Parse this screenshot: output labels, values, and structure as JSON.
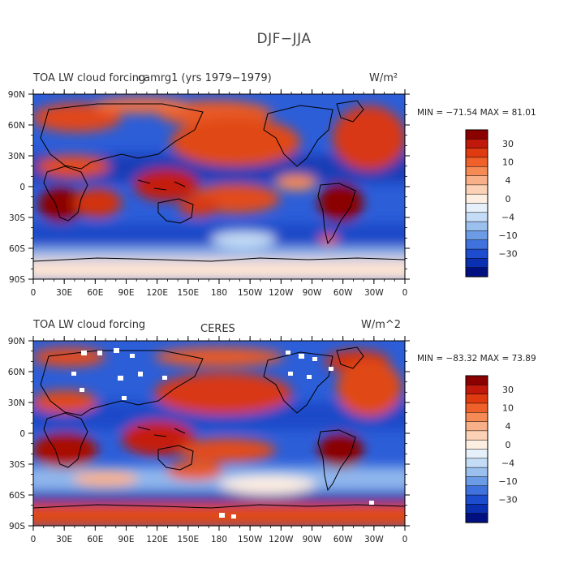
{
  "figure_title": "DJF−JJA",
  "panels": [
    {
      "left_title": "TOA LW cloud forcing",
      "center_title": "camrg1 (yrs 1979−1979)",
      "units": "W/m²",
      "min_max": "MIN = −71.54  MAX =  81.01"
    },
    {
      "left_title": "TOA LW cloud forcing",
      "center_title": "CERES",
      "units": "W/m^2",
      "min_max": "MIN = −83.32  MAX =  73.89"
    }
  ],
  "lon_labels": [
    "0",
    "30E",
    "60E",
    "90E",
    "120E",
    "150E",
    "180",
    "150W",
    "120W",
    "90W",
    "60W",
    "30W",
    "0"
  ],
  "lat_labels": [
    "90N",
    "60N",
    "30N",
    "0",
    "30S",
    "60S",
    "90S"
  ],
  "colorbar": {
    "tick_labels": [
      "30",
      "10",
      "4",
      "0",
      "−4",
      "−10",
      "−30"
    ],
    "colors": [
      "#8b0000",
      "#c0180a",
      "#e03a10",
      "#f0602a",
      "#f58a55",
      "#f8b088",
      "#fbd2b5",
      "#fdeee2",
      "#e6f0fb",
      "#c4dcf5",
      "#9cc0ee",
      "#6c9ce6",
      "#3f72dd",
      "#1d4ccf",
      "#0a2fb0",
      "#001080"
    ]
  }
}
